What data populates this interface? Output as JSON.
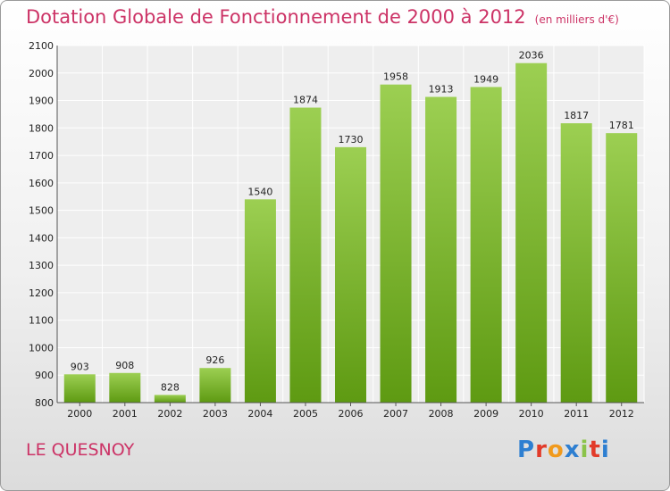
{
  "title": "Dotation Globale de Fonctionnement de 2000 à 2012",
  "subtitle": "(en milliers d'€)",
  "city": "LE QUESNOY",
  "logo_text": "Proxiti",
  "colors": {
    "title": "#cc3366",
    "bar_top": "#9ccf52",
    "bar_bottom": "#5e9a12"
  },
  "chart_data": {
    "type": "bar",
    "title": "Dotation Globale de Fonctionnement de 2000 à 2012",
    "subtitle": "(en milliers d'€)",
    "categories": [
      "2000",
      "2001",
      "2002",
      "2003",
      "2004",
      "2005",
      "2006",
      "2007",
      "2008",
      "2009",
      "2010",
      "2011",
      "2012"
    ],
    "values": [
      903,
      908,
      828,
      926,
      1540,
      1874,
      1730,
      1958,
      1913,
      1949,
      2036,
      1817,
      1781
    ],
    "ylim": [
      800,
      2100
    ],
    "yticks": [
      800,
      900,
      1000,
      1100,
      1200,
      1300,
      1400,
      1500,
      1600,
      1700,
      1800,
      1900,
      2000,
      2100
    ],
    "grid": true,
    "xlabel": "",
    "ylabel": ""
  }
}
